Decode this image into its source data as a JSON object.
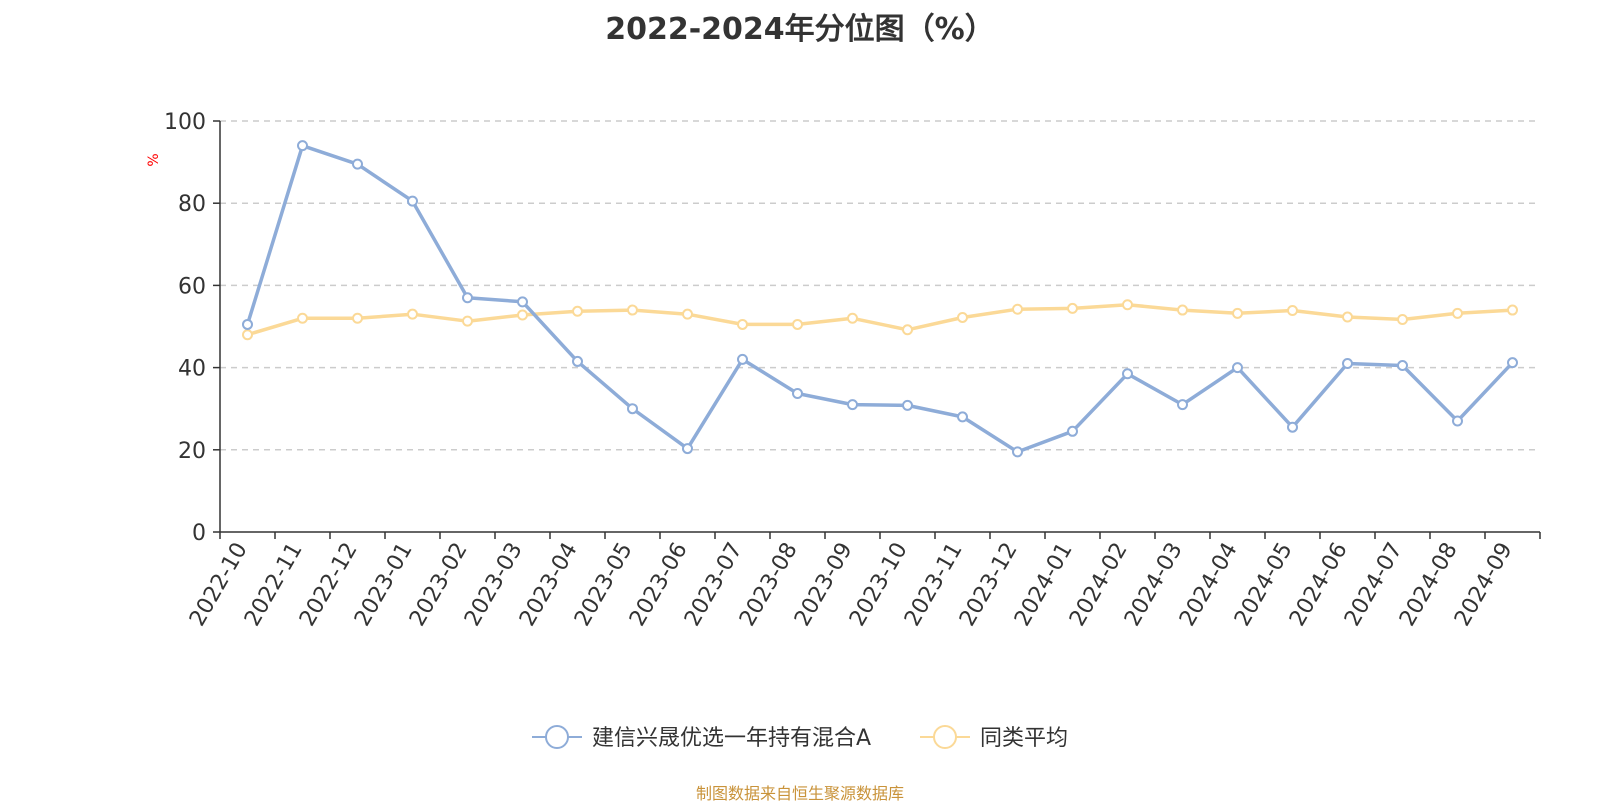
{
  "chart_data": {
    "type": "line",
    "title": "2022-2024年分位图（%）",
    "ylabel": "%",
    "xlabel": "",
    "ylim": [
      0,
      100
    ],
    "yticks": [
      0,
      20,
      40,
      60,
      80,
      100
    ],
    "grid": true,
    "legend_position": "bottom",
    "categories": [
      "2022-10",
      "2022-11",
      "2022-12",
      "2023-01",
      "2023-02",
      "2023-03",
      "2023-04",
      "2023-05",
      "2023-06",
      "2023-07",
      "2023-08",
      "2023-09",
      "2023-10",
      "2023-11",
      "2023-12",
      "2024-01",
      "2024-02",
      "2024-03",
      "2024-04",
      "2024-05",
      "2024-06",
      "2024-07",
      "2024-08",
      "2024-09"
    ],
    "series": [
      {
        "name": "建信兴晟优选一年持有混合A",
        "color": "#8eacd8",
        "values": [
          50.5,
          94,
          89.5,
          80.5,
          57,
          56,
          41.5,
          30,
          20.3,
          42,
          33.7,
          31,
          30.8,
          28,
          19.5,
          24.5,
          38.5,
          31,
          40,
          25.5,
          41,
          40.5,
          27,
          41.2
        ]
      },
      {
        "name": "同类平均",
        "color": "#fbd997",
        "values": [
          48,
          52,
          52,
          53,
          51.3,
          52.8,
          53.7,
          54,
          53,
          50.5,
          50.5,
          52,
          49.2,
          52.2,
          54.2,
          54.4,
          55.3,
          54,
          53.2,
          53.9,
          52.3,
          51.7,
          53.2,
          54
        ]
      }
    ]
  },
  "source": "制图数据来自恒生聚源数据库"
}
